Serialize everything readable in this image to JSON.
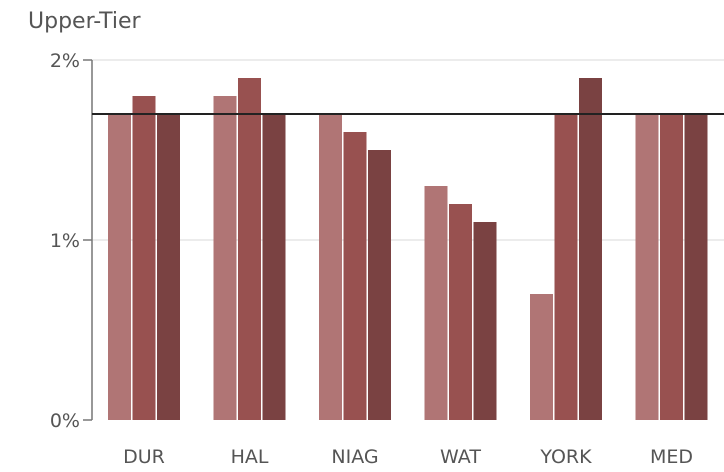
{
  "chart_data": {
    "type": "bar",
    "title": "Upper-Tier",
    "categories": [
      "DUR",
      "HAL",
      "NIAG",
      "WAT",
      "YORK",
      "MED"
    ],
    "series": [
      {
        "values": [
          1.7,
          1.8,
          1.7,
          1.3,
          0.7,
          1.7
        ],
        "color": "#b07575"
      },
      {
        "values": [
          1.8,
          1.9,
          1.6,
          1.2,
          1.7,
          1.7
        ],
        "color": "#985150"
      },
      {
        "values": [
          1.7,
          1.7,
          1.5,
          1.1,
          1.9,
          1.7
        ],
        "color": "#7a4242"
      }
    ],
    "reference_line": 1.7,
    "reference_color": "#222222",
    "ylim": [
      0,
      2
    ],
    "yticks": [
      {
        "value": 0,
        "label": "0%"
      },
      {
        "value": 1,
        "label": "1%"
      },
      {
        "value": 2,
        "label": "2%"
      }
    ],
    "grid": true,
    "grid_color": "#e6e6e6",
    "axis_color": "#777777"
  }
}
